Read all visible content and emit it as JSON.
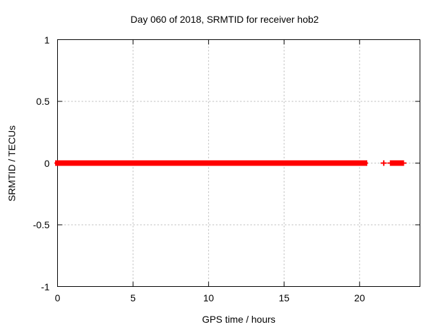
{
  "chart_data": {
    "type": "scatter",
    "title": "Day 060 of 2018, SRMTID for receiver hob2",
    "xlabel": "GPS time / hours",
    "ylabel": "SRMTID / TECUs",
    "xlim": [
      0,
      24
    ],
    "ylim": [
      -1,
      1
    ],
    "grid": true,
    "legend_position": "none",
    "xticks": [
      {
        "value": 0,
        "label": "0"
      },
      {
        "value": 5,
        "label": "5"
      },
      {
        "value": 10,
        "label": "10"
      },
      {
        "value": 15,
        "label": "15"
      },
      {
        "value": 20,
        "label": "20"
      }
    ],
    "yticks": [
      {
        "value": 1,
        "label": "1"
      },
      {
        "value": 0.5,
        "label": "0.5"
      },
      {
        "value": 0,
        "label": "0"
      },
      {
        "value": -0.5,
        "label": "-0.5"
      },
      {
        "value": -1,
        "label": "-1"
      }
    ],
    "colors": {
      "series": "#ff0000",
      "grid": "#b3b3b3",
      "axis": "#000000",
      "text": "#000000"
    },
    "series": [
      {
        "name": "SRMTID",
        "marker": "plus",
        "color": "#ff0000",
        "y_value": 0,
        "dense_segments_x_hours": [
          [
            0.0,
            4.22
          ],
          [
            4.45,
            5.02
          ],
          [
            5.22,
            6.8
          ],
          [
            7.03,
            16.88
          ],
          [
            17.02,
            20.35
          ],
          [
            22.2,
            22.78
          ]
        ],
        "isolated_points_x_hours": [
          21.6,
          22.05,
          22.9
        ]
      }
    ]
  }
}
